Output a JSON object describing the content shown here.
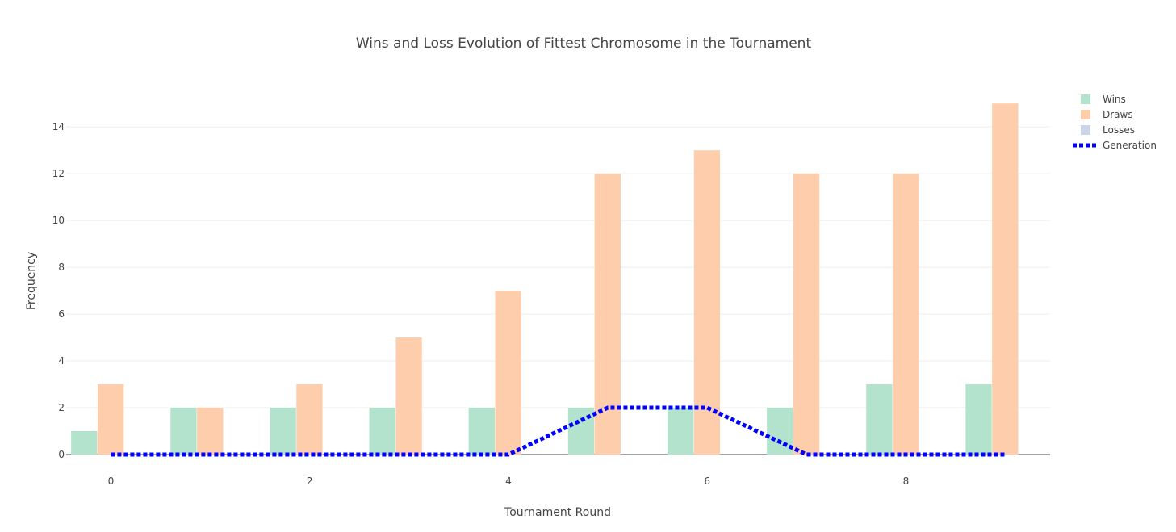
{
  "chart_data": {
    "type": "bar",
    "title": "Wins and Loss Evolution of Fittest Chromosome in the Tournament",
    "xlabel": "Tournament Round",
    "ylabel": "Frequency",
    "x": [
      0,
      1,
      2,
      3,
      4,
      5,
      6,
      7,
      8,
      9
    ],
    "x_ticks": [
      0,
      2,
      4,
      6,
      8
    ],
    "xlim": [
      -0.45,
      9.45
    ],
    "y_ticks": [
      0,
      2,
      4,
      6,
      8,
      10,
      12,
      14
    ],
    "ylim": [
      0,
      15.8
    ],
    "grid": true,
    "legend_position": "top-right",
    "series": [
      {
        "name": "Wins",
        "kind": "bar",
        "color": "#b3e2cd",
        "values": [
          1,
          2,
          2,
          2,
          2,
          2,
          2,
          2,
          3,
          3
        ]
      },
      {
        "name": "Draws",
        "kind": "bar",
        "color": "#fdcdac",
        "values": [
          3,
          2,
          3,
          5,
          7,
          12,
          13,
          12,
          12,
          15
        ]
      },
      {
        "name": "Losses",
        "kind": "bar",
        "color": "#cbd5e8",
        "values": [
          0,
          0,
          0,
          0,
          0,
          0,
          0,
          0,
          0,
          0
        ]
      },
      {
        "name": "Generation",
        "kind": "line",
        "dash": "dot",
        "color": "#0000ff",
        "values": [
          0,
          0,
          0,
          0,
          0,
          2,
          2,
          0,
          0,
          0
        ]
      }
    ]
  }
}
